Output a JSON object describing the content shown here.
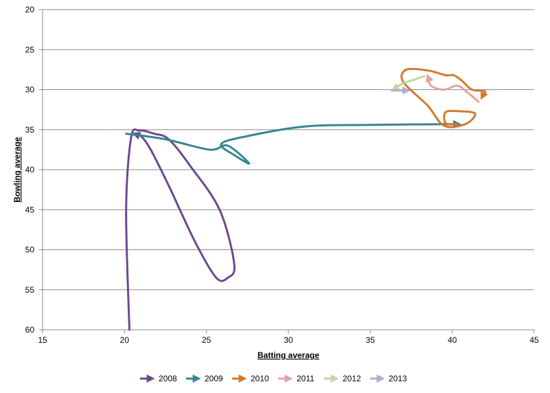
{
  "chart_data": {
    "type": "line",
    "title": "",
    "xlabel": "Batting average",
    "ylabel": "Bowling average",
    "xlim": [
      15,
      45
    ],
    "ylim": [
      20,
      60
    ],
    "y_inverted": true,
    "x_ticks": [
      "15",
      "20",
      "25",
      "30",
      "35",
      "40",
      "45"
    ],
    "y_ticks": [
      "20",
      "25",
      "30",
      "35",
      "40",
      "45",
      "50",
      "55",
      "60"
    ],
    "grid": "horizontal",
    "legend_position": "bottom",
    "series": [
      {
        "name": "2008",
        "color": "#6b4a8c",
        "points": [
          [
            20.3,
            60.0
          ],
          [
            20.1,
            45.0
          ],
          [
            20.4,
            36.0
          ],
          [
            20.9,
            35.1
          ],
          [
            21.8,
            35.5
          ],
          [
            22.7,
            36.2
          ],
          [
            24.0,
            39.5
          ],
          [
            25.8,
            45.0
          ],
          [
            26.7,
            51.8
          ],
          [
            26.3,
            53.5
          ],
          [
            25.6,
            53.5
          ],
          [
            24.3,
            49.0
          ],
          [
            22.7,
            42.0
          ],
          [
            21.6,
            37.5
          ],
          [
            21.0,
            35.8
          ],
          [
            20.6,
            35.5
          ]
        ]
      },
      {
        "name": "2009",
        "color": "#33878f",
        "points": [
          [
            20.1,
            35.5
          ],
          [
            22.5,
            36.2
          ],
          [
            25.2,
            37.5
          ],
          [
            26.3,
            37.0
          ],
          [
            27.6,
            39.2
          ],
          [
            26.8,
            38.3
          ],
          [
            25.9,
            36.8
          ],
          [
            27.5,
            35.8
          ],
          [
            31.0,
            34.6
          ],
          [
            35.0,
            34.4
          ],
          [
            40.4,
            34.3
          ]
        ]
      },
      {
        "name": "2010",
        "color": "#d27a2e",
        "points": [
          [
            40.3,
            34.3
          ],
          [
            39.6,
            34.2
          ],
          [
            39.6,
            32.8
          ],
          [
            40.5,
            32.7
          ],
          [
            41.4,
            33.0
          ],
          [
            40.8,
            34.3
          ],
          [
            39.5,
            34.5
          ],
          [
            38.5,
            32.0
          ],
          [
            37.0,
            29.0
          ],
          [
            37.2,
            27.5
          ],
          [
            38.5,
            27.6
          ],
          [
            39.6,
            28.2
          ],
          [
            40.1,
            28.2
          ],
          [
            40.6,
            28.9
          ],
          [
            41.2,
            30.0
          ],
          [
            42.0,
            30.2
          ],
          [
            41.8,
            31.0
          ]
        ]
      },
      {
        "name": "2011",
        "color": "#e2a3a3",
        "points": [
          [
            41.6,
            31.5
          ],
          [
            40.9,
            30.3
          ],
          [
            40.3,
            29.5
          ],
          [
            39.5,
            30.0
          ],
          [
            38.7,
            29.5
          ],
          [
            38.5,
            28.3
          ]
        ]
      },
      {
        "name": "2012",
        "color": "#bcd9a2",
        "points": [
          [
            38.3,
            28.3
          ],
          [
            37.6,
            28.8
          ],
          [
            37.0,
            29.2
          ],
          [
            36.4,
            30.0
          ]
        ]
      },
      {
        "name": "2013",
        "color": "#b7a9d2",
        "points": [
          [
            36.3,
            30.1
          ],
          [
            37.3,
            30.1
          ]
        ]
      }
    ]
  }
}
